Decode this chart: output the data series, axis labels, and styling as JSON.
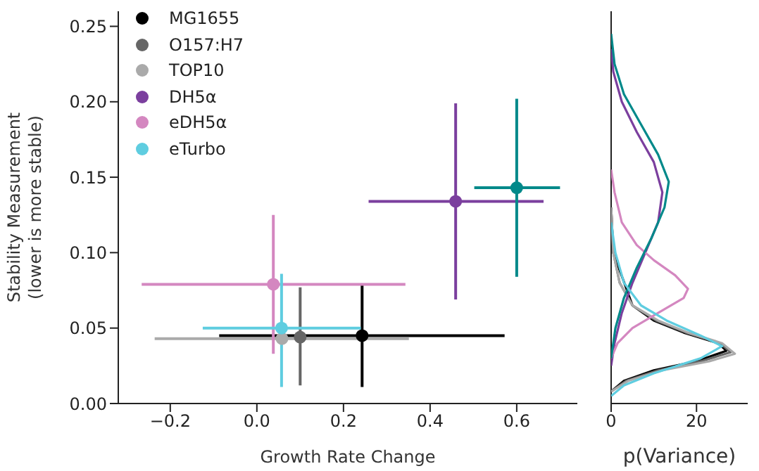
{
  "chart_data": [
    {
      "type": "scatter",
      "xlabel": "Growth Rate Change",
      "ylabel": "Stability Measurement\n(lower is more stable)",
      "marker": "circle",
      "legend": "top left",
      "xlim": [
        -0.32,
        0.74
      ],
      "xticks": [
        {
          "value": -0.2,
          "label": "−0.2"
        },
        {
          "value": 0,
          "label": "0.0"
        },
        {
          "value": 0.2,
          "label": "0.2"
        },
        {
          "value": 0.4,
          "label": "0.4"
        },
        {
          "value": 0.6,
          "label": "0.6"
        }
      ],
      "ylim": [
        0,
        0.26
      ],
      "yticks": [
        {
          "value": 0,
          "label": "0.00"
        },
        {
          "value": 0.05,
          "label": "0.05"
        },
        {
          "value": 0.1,
          "label": "0.10"
        },
        {
          "value": 0.15,
          "label": "0.15"
        },
        {
          "value": 0.2,
          "label": "0.20"
        },
        {
          "value": 0.25,
          "label": "0.25"
        }
      ],
      "series": [
        {
          "name": "MG1655",
          "color": "#000000",
          "x": [
            0.243
          ],
          "values": [
            0.045
          ],
          "xerrors": [
            [
              -0.087,
              0.572
            ]
          ],
          "errors": [
            [
              0.011,
              0.079
            ]
          ]
        },
        {
          "name": "O157:H7",
          "color": "#666666",
          "x": [
            0.1
          ],
          "values": [
            0.044
          ],
          "errors": [
            [
              0.012,
              0.077
            ]
          ]
        },
        {
          "name": "TOP10",
          "color": "#aaaaaa",
          "x": [
            0.058
          ],
          "values": [
            0.043
          ],
          "xerrors": [
            [
              -0.236,
              0.351
            ]
          ]
        },
        {
          "name": "DH5α",
          "color": "#7b3f9e",
          "x": [
            0.459
          ],
          "values": [
            0.134
          ],
          "xerrors": [
            [
              0.258,
              0.662
            ]
          ],
          "errors": [
            [
              0.069,
              0.199
            ]
          ]
        },
        {
          "name": "eDH5α",
          "color": "#d487c0",
          "x": [
            0.038
          ],
          "values": [
            0.079
          ],
          "xerrors": [
            [
              -0.266,
              0.343
            ]
          ],
          "errors": [
            [
              0.033,
              0.125
            ]
          ]
        },
        {
          "color": "#00898a",
          "x": [
            0.6
          ],
          "values": [
            0.143
          ],
          "xerrors": [
            [
              0.502,
              0.7
            ]
          ],
          "errors": [
            [
              0.084,
              0.202
            ]
          ]
        },
        {
          "name": "eTurbo",
          "color": "#5fcde0",
          "x": [
            0.057
          ],
          "values": [
            0.05
          ],
          "xerrors": [
            [
              -0.125,
              0.24
            ]
          ],
          "errors": [
            [
              0.011,
              0.086
            ]
          ]
        }
      ]
    },
    {
      "type": "line",
      "xlabel": "p(Variance)",
      "marker": "none",
      "tick_labels": "x",
      "xlim": [
        0,
        32
      ],
      "xticks": [
        0,
        20
      ],
      "ylim": [
        0,
        0.26
      ],
      "series": [
        {
          "color": "#000000",
          "x": [
            0,
            3,
            10,
            20,
            27,
            25,
            17,
            10,
            5,
            0.5,
            0
          ],
          "values": [
            0.008,
            0.015,
            0.022,
            0.028,
            0.035,
            0.04,
            0.047,
            0.055,
            0.065,
            0.1,
            0.13
          ]
        },
        {
          "color": "#666666",
          "x": [
            0,
            3.5,
            11,
            21,
            28,
            25.5,
            17.5,
            10.5,
            5,
            2,
            0.5,
            0
          ],
          "values": [
            0.008,
            0.015,
            0.022,
            0.028,
            0.034,
            0.04,
            0.047,
            0.055,
            0.065,
            0.08,
            0.1,
            0.13
          ]
        },
        {
          "color": "#aaaaaa",
          "x": [
            0,
            4,
            12,
            23,
            29,
            26,
            18,
            11,
            5,
            2,
            0.5,
            0
          ],
          "values": [
            0.008,
            0.015,
            0.022,
            0.028,
            0.033,
            0.04,
            0.047,
            0.055,
            0.065,
            0.08,
            0.1,
            0.13
          ]
        },
        {
          "color": "#7b3f9e",
          "x": [
            0,
            0.8,
            2.5,
            5,
            8,
            11,
            12,
            10,
            6,
            2.5,
            0.5,
            0
          ],
          "values": [
            0.025,
            0.04,
            0.06,
            0.08,
            0.1,
            0.12,
            0.14,
            0.16,
            0.18,
            0.2,
            0.22,
            0.235
          ]
        },
        {
          "color": "#d487c0",
          "x": [
            0,
            1.5,
            5,
            11,
            17,
            18,
            15,
            10,
            6,
            2.5,
            0.8,
            0
          ],
          "values": [
            0.03,
            0.04,
            0.05,
            0.06,
            0.07,
            0.076,
            0.085,
            0.095,
            0.105,
            0.12,
            0.14,
            0.155
          ]
        },
        {
          "color": "#00898a",
          "x": [
            0,
            1,
            3,
            6,
            9.5,
            12.5,
            13.5,
            11,
            7,
            3,
            0.8,
            0
          ],
          "values": [
            0.03,
            0.05,
            0.07,
            0.09,
            0.11,
            0.13,
            0.147,
            0.165,
            0.185,
            0.205,
            0.225,
            0.245
          ]
        },
        {
          "color": "#5fcde0",
          "x": [
            0,
            3,
            10,
            21,
            26,
            21,
            13,
            7,
            3,
            1,
            0
          ],
          "values": [
            0.005,
            0.012,
            0.02,
            0.03,
            0.038,
            0.045,
            0.055,
            0.065,
            0.08,
            0.1,
            0.12
          ]
        }
      ]
    }
  ]
}
